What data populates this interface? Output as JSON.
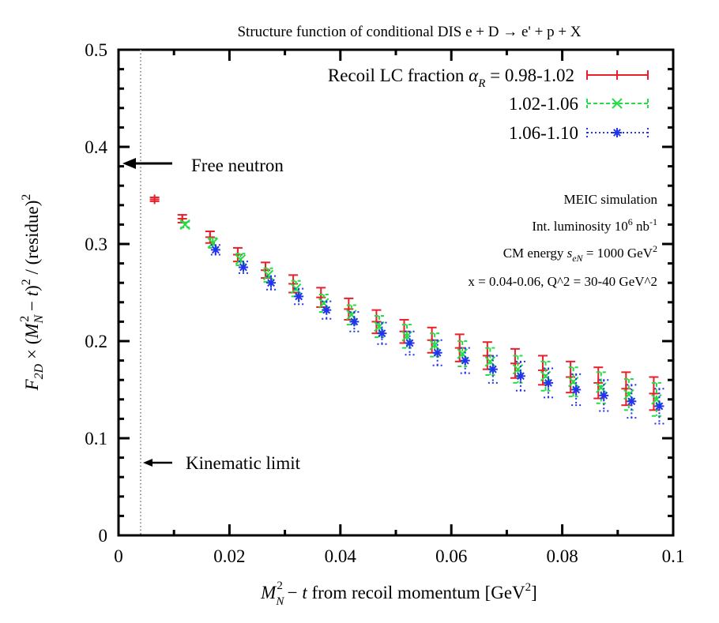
{
  "chart_data": {
    "type": "scatter",
    "title": "Structure function of conditional DIS e + D → e' + p + X",
    "xlabel": "M_N^2 − t   from recoil momentum   [GeV^2]",
    "ylabel": "F_2D × (M_N^2 − t)^2 / (residue)^2",
    "xlim": [
      0,
      0.1
    ],
    "ylim": [
      0,
      0.5
    ],
    "xticks": [
      "0",
      "0.02",
      "0.04",
      "0.06",
      "0.08",
      "0.1"
    ],
    "yticks": [
      "0",
      "0.1",
      "0.2",
      "0.3",
      "0.4",
      "0.5"
    ],
    "legend_position": "top-right",
    "series": [
      {
        "name": "Recoil LC fraction α_R = 0.98-1.02",
        "legend_label": "0.98-1.02",
        "color": "#e8202a",
        "marker": "plus",
        "line": "solid",
        "x": [
          0.0065,
          0.0115,
          0.0165,
          0.0215,
          0.0265,
          0.0315,
          0.0365,
          0.0415,
          0.0465,
          0.0515,
          0.0565,
          0.0615,
          0.0665,
          0.0715,
          0.0765,
          0.0815,
          0.0865,
          0.0915,
          0.0965
        ],
        "y": [
          0.346,
          0.326,
          0.307,
          0.289,
          0.273,
          0.259,
          0.245,
          0.233,
          0.22,
          0.21,
          0.201,
          0.193,
          0.185,
          0.177,
          0.17,
          0.163,
          0.157,
          0.151,
          0.146
        ],
        "err": [
          0.002,
          0.004,
          0.006,
          0.007,
          0.008,
          0.009,
          0.01,
          0.011,
          0.012,
          0.012,
          0.013,
          0.014,
          0.014,
          0.015,
          0.015,
          0.016,
          0.016,
          0.017,
          0.017
        ]
      },
      {
        "name": "1.02-1.06",
        "legend_label": "1.02-1.06",
        "color": "#22dd44",
        "marker": "cross",
        "line": "dashed",
        "x": [
          0.012,
          0.017,
          0.022,
          0.027,
          0.032,
          0.037,
          0.042,
          0.047,
          0.052,
          0.057,
          0.062,
          0.067,
          0.072,
          0.077,
          0.082,
          0.087,
          0.092,
          0.097
        ],
        "y": [
          0.32,
          0.301,
          0.284,
          0.268,
          0.254,
          0.239,
          0.227,
          0.215,
          0.205,
          0.196,
          0.187,
          0.179,
          0.171,
          0.164,
          0.158,
          0.152,
          0.145,
          0.14
        ],
        "err": [
          0.003,
          0.005,
          0.006,
          0.007,
          0.008,
          0.009,
          0.01,
          0.011,
          0.012,
          0.012,
          0.013,
          0.014,
          0.014,
          0.015,
          0.015,
          0.016,
          0.016,
          0.017
        ]
      },
      {
        "name": "1.06-1.10",
        "legend_label": "1.06-1.10",
        "color": "#2233ee",
        "marker": "star",
        "line": "dotted",
        "x": [
          0.0175,
          0.0225,
          0.0275,
          0.0325,
          0.0375,
          0.0425,
          0.0475,
          0.0525,
          0.0575,
          0.0625,
          0.0675,
          0.0725,
          0.0775,
          0.0825,
          0.0875,
          0.0925,
          0.0975
        ],
        "y": [
          0.294,
          0.276,
          0.26,
          0.246,
          0.232,
          0.22,
          0.208,
          0.198,
          0.188,
          0.18,
          0.171,
          0.164,
          0.157,
          0.15,
          0.144,
          0.138,
          0.133
        ],
        "err": [
          0.005,
          0.006,
          0.007,
          0.008,
          0.009,
          0.01,
          0.011,
          0.012,
          0.013,
          0.013,
          0.014,
          0.015,
          0.015,
          0.016,
          0.016,
          0.017,
          0.018
        ]
      }
    ],
    "kinematic_limit_x": 0.004,
    "free_neutron_y": 0.382,
    "annotations": {
      "free_neutron": "Free neutron",
      "kinematic_limit": "Kinematic limit",
      "info": [
        "MEIC simulation",
        "Int. luminosity 10^6 nb^-1",
        "CM energy s_eN = 1000 GeV^2",
        "x = 0.04-0.06,  Q^2 = 30-40 GeV^2"
      ]
    }
  }
}
